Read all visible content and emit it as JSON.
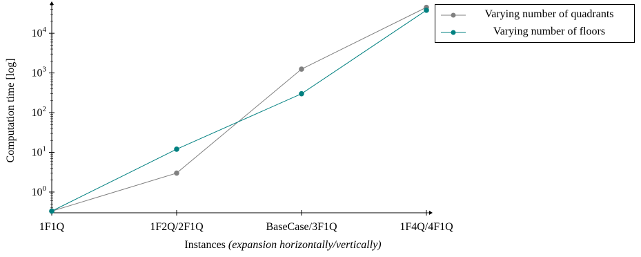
{
  "chart_data": {
    "type": "line",
    "categories": [
      "1F1Q",
      "1F2Q/2F1Q",
      "BaseCase/3F1Q",
      "1F4Q/4F1Q"
    ],
    "ylabel": "Computation time [log]",
    "xlabel_main": "Instances",
    "xlabel_note": "(expansion horizontally/vertically)",
    "yscale": "log",
    "ylim": [
      0.3,
      50000
    ],
    "yticks": [
      {
        "base": "10",
        "exp": "0"
      },
      {
        "base": "10",
        "exp": "1"
      },
      {
        "base": "10",
        "exp": "2"
      },
      {
        "base": "10",
        "exp": "3"
      },
      {
        "base": "10",
        "exp": "4"
      }
    ],
    "legend_position": "outside top-right",
    "series": [
      {
        "name": "Varying number of quadrants",
        "color": "#808080",
        "values": [
          0.33,
          3,
          1250,
          45000
        ]
      },
      {
        "name": "Varying number of floors",
        "color": "#008080",
        "values": [
          0.33,
          12,
          300,
          38000
        ]
      }
    ]
  }
}
